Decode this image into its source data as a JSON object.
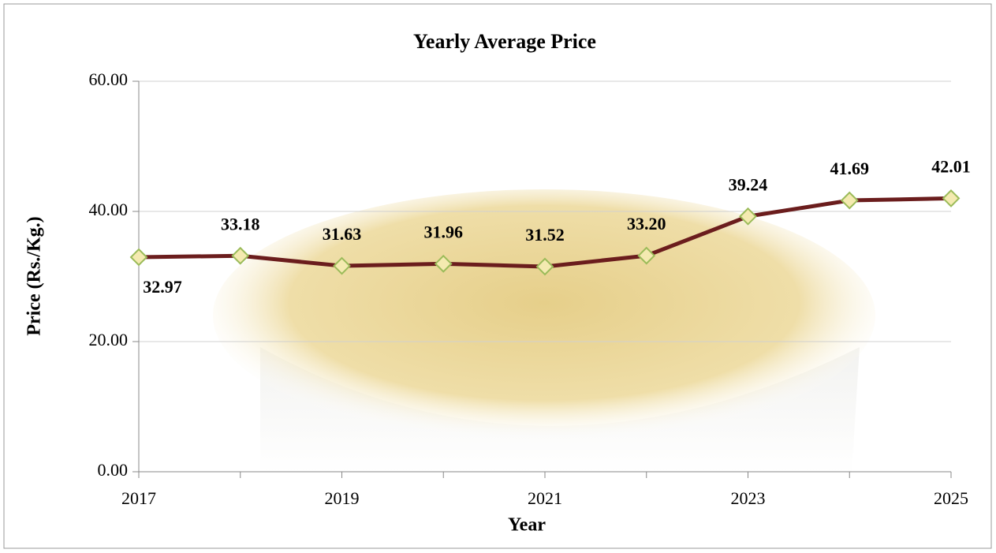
{
  "chart_data": {
    "type": "line",
    "title": "Yearly Average Price",
    "x_label": "Year",
    "y_label": "Price (Rs./Kg.)",
    "categories": [
      "2017",
      null,
      "2019",
      null,
      "2021",
      null,
      "2023",
      null,
      "2025"
    ],
    "series": [
      {
        "name": "Yearly Average Price",
        "color": "#6b1d1d",
        "values": [
          32.97,
          33.18,
          31.63,
          31.96,
          31.52,
          33.2,
          39.24,
          41.69,
          42.01
        ],
        "value_labels": [
          "32.97",
          "33.18",
          "31.63",
          "31.96",
          "31.52",
          "33.20",
          "39.24",
          "41.69",
          "42.01"
        ]
      }
    ],
    "ylim": [
      0,
      60
    ],
    "yticks": [
      {
        "value": 0,
        "label": "0.00"
      },
      {
        "value": 20,
        "label": "20.00"
      },
      {
        "value": 40,
        "label": "40.00"
      },
      {
        "value": 60,
        "label": "60.00"
      }
    ],
    "grid": true
  }
}
